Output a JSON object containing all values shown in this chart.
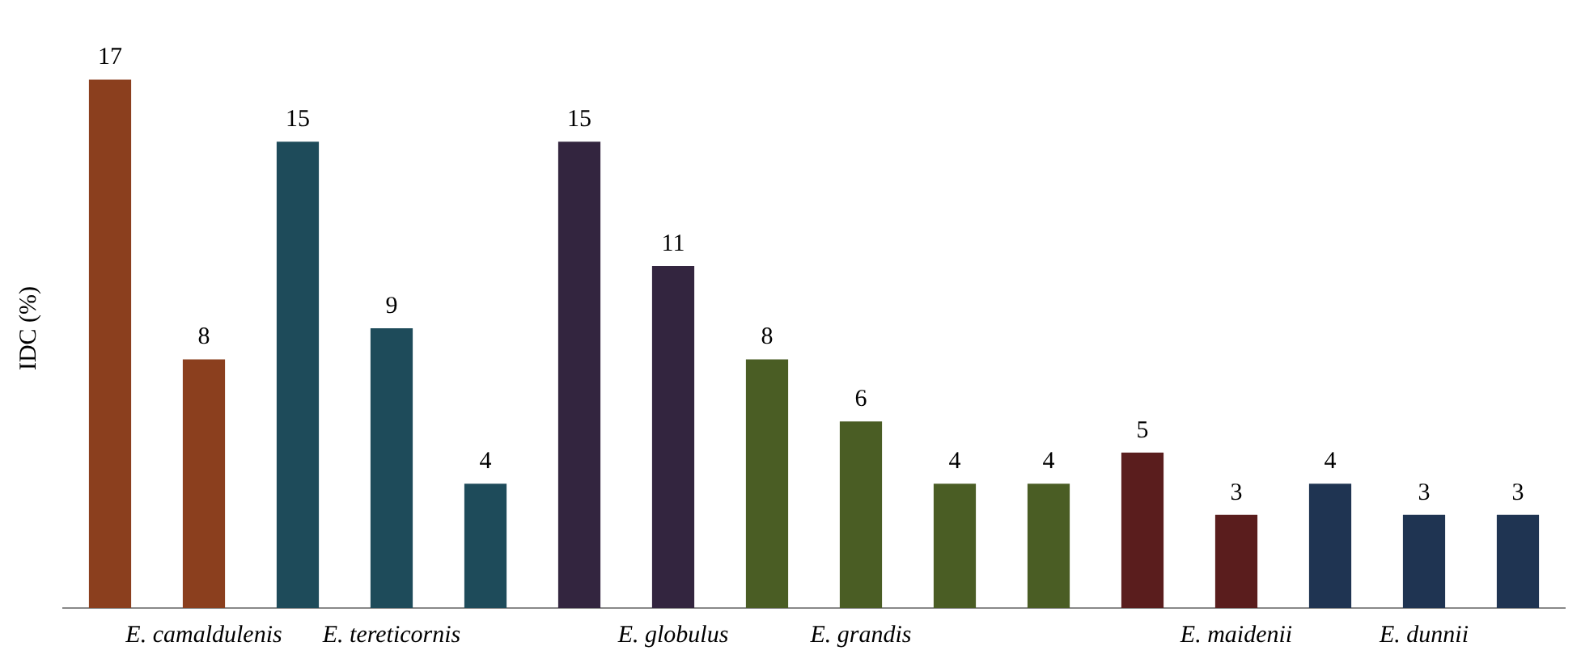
{
  "chart_data": {
    "type": "bar",
    "ylabel": "IDC (%)",
    "categories": [
      null,
      "E. camaldulenis",
      null,
      "E. tereticornis",
      null,
      null,
      "E. globulus",
      null,
      "E. grandis",
      null,
      null,
      null,
      "E. maidenii",
      null,
      "E. dunnii",
      null
    ],
    "values": [
      17,
      8,
      15,
      9,
      4,
      15,
      11,
      8,
      6,
      4,
      4,
      5,
      3,
      4,
      3,
      3
    ],
    "colors": [
      "#8b3f1e",
      "#8b3f1e",
      "#1e4b5a",
      "#1e4b5a",
      "#1e4b5a",
      "#33253f",
      "#33253f",
      "#4a5d24",
      "#4a5d24",
      "#4a5d24",
      "#4a5d24",
      "#5a1d1d",
      "#5a1d1d",
      "#1f3452",
      "#1f3452",
      "#1f3452"
    ],
    "data_labels": true,
    "grid": false,
    "legend": false
  }
}
